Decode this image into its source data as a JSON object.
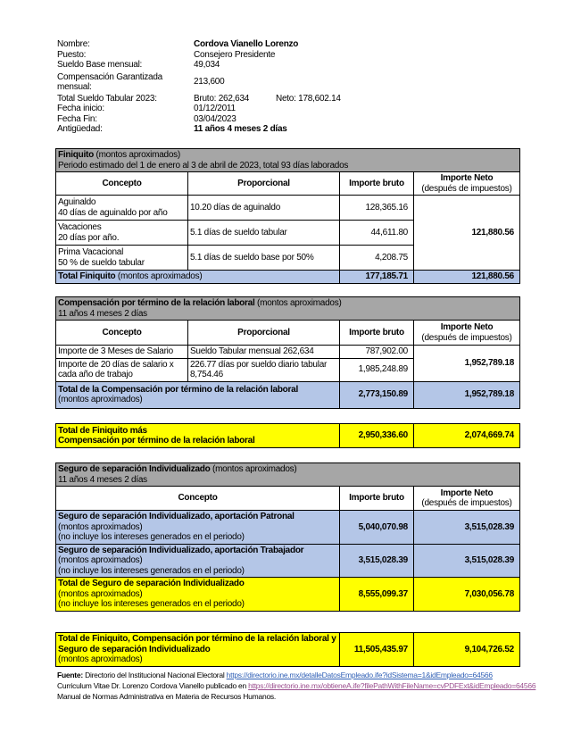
{
  "info": {
    "nombre_label": "Nombre:",
    "nombre": "Cordova Vianello Lorenzo",
    "puesto_label": "Puesto:",
    "puesto": "Consejero Presidente",
    "sueldo_label": "Sueldo Base mensual:",
    "sueldo": "49,034",
    "comp_label": "Compensación Garantizada mensual:",
    "comp": "213,600",
    "total_label": "Total Sueldo Tabular 2023:",
    "bruto": "Bruto: 262,634",
    "neto": "Neto: 178,602.14",
    "inicio_label": "Fecha inicio:",
    "inicio": "01/12/2011",
    "fin_label": "Fecha Fin:",
    "fin": "03/04/2023",
    "antig_label": "Antigüedad:",
    "antig": "11 años 4 meses 2 días"
  },
  "headers": {
    "concepto": "Concepto",
    "proporcional": "Proporcional",
    "bruto": "Importe bruto",
    "neto": "Importe Neto",
    "neto_sub": "(después de impuestos)"
  },
  "finiquito": {
    "title": "Finiquito",
    "title_note": " (montos aproximados)",
    "period": "Periodo estimado del 1 de enero al 3 de abril de 2023, total 93 días laborados",
    "rows": [
      {
        "c1": "Aguinaldo",
        "c2": "40 días de aguinaldo por año",
        "prop": "10.20 días de aguinaldo",
        "bruto": "128,365.16"
      },
      {
        "c1": "Vacaciones",
        "c2": "20 días por año.",
        "prop": "5.1 días de sueldo tabular",
        "bruto": "44,611.80"
      },
      {
        "c1": "Prima Vacacional",
        "c2": "50 % de sueldo tabular",
        "prop": "5.1 días de sueldo base por 50%",
        "bruto": "4,208.75"
      }
    ],
    "neto": "121,880.56",
    "total_label": "Total Finiquito",
    "total_note": " (montos aproximados)",
    "total_bruto": "177,185.71",
    "total_neto": "121,880.56"
  },
  "compensacion": {
    "title": "Compensación por término de la relación laboral",
    "title_note": " (montos aproximados)",
    "sub": "11 años 4 meses 2 días",
    "rows": [
      {
        "c": "Importe de 3 Meses de Salario",
        "prop": "Sueldo Tabular mensual 262,634",
        "bruto": "787,902.00"
      },
      {
        "c": "Importe de 20 días de salario x cada año de trabajo",
        "prop": "226.77 días por sueldo diario tabular 8,754.46",
        "bruto": "1,985,248.89"
      }
    ],
    "neto": "1,952,789.18",
    "total_label": "Total de la Compensación por término de la relación laboral",
    "total_note": "(montos aproximados)",
    "total_bruto": "2,773,150.89",
    "total_neto": "1,952,789.18"
  },
  "sum1": {
    "l1": "Total de Finiquito más",
    "l2": "Compensación por término de la relación laboral",
    "bruto": "2,950,336.60",
    "neto": "2,074,669.74"
  },
  "seguro": {
    "title": "Seguro de separación Individualizado",
    "title_note": " (montos aproximados)",
    "sub": "11 años 4 meses 2 días",
    "rows": [
      {
        "t": "Seguro de separación Individualizado, aportación Patronal",
        "n1": "(montos aproximados)",
        "n2": "(no incluye los intereses generados en el periodo)",
        "bruto": "5,040,070.98",
        "neto": "3,515,028.39"
      },
      {
        "t": "Seguro de separación Individualizado, aportación  Trabajador",
        "n1": "(montos aproximados)",
        "n2": "(no incluye los intereses generados en el periodo)",
        "bruto": "3,515,028.39",
        "neto": "3,515,028.39"
      }
    ],
    "total": {
      "t": "Total de Seguro de separación Individualizado",
      "n1": "(montos aproximados)",
      "n2": "(no incluye los intereses generados en el periodo)",
      "bruto": "8,555,099.37",
      "neto": "7,030,056.78"
    }
  },
  "grand": {
    "l1": "Total de Finiquito, Compensación por término de la relación laboral y Seguro de separación Individualizado",
    "note": "(montos aproximados)",
    "bruto": "11,505,435.97",
    "neto": "9,104,726.52"
  },
  "footer": {
    "fuente": "Fuente:",
    "line1": " Directorio del Institucional Nacional Electoral ",
    "link1": "https://directorio.ine.mx/detalleDatosEmpleado.ife?idSistema=1&idEmpleado=64566",
    "line2": "Curriculum Vitae Dr. Lorenzo Cordova Vianello publicado en ",
    "link2": "https://directorio.ine.mx/obtieneA.ife?filePathWithFileName=cvPDFExt&idEmpleado=64566",
    "line3": "Manual de Normas Administrativa en Materia de Recursos Humanos."
  },
  "colors": {
    "gray": "#a6a6a6",
    "blue": "#b4c6e7",
    "yellow": "#ffff00"
  }
}
